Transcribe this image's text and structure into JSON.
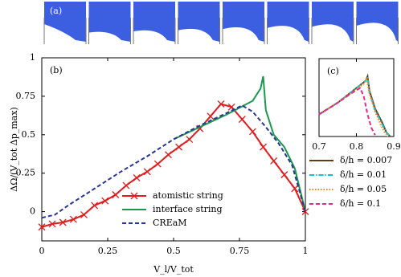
{
  "panel_a": {
    "label": "(a)"
  },
  "chart_data": [
    {
      "type": "line",
      "panel_label": "(b)",
      "x_label": "V_l/V_tot",
      "y_label": "ΔΩ/(V_tot Δp_max)",
      "xlim": [
        0,
        1
      ],
      "ylim": [
        -0.19,
        1
      ],
      "xticks": [
        0,
        0.25,
        0.5,
        0.75,
        1
      ],
      "yticks": [
        0,
        0.25,
        0.5,
        0.75,
        1
      ],
      "legend": "lower right",
      "series": [
        {
          "name": "atomistic string",
          "color": "#e41a1c",
          "dash": "solid",
          "marker": "x",
          "x": [
            0,
            0.04,
            0.08,
            0.12,
            0.16,
            0.2,
            0.24,
            0.28,
            0.32,
            0.36,
            0.4,
            0.44,
            0.48,
            0.52,
            0.56,
            0.6,
            0.64,
            0.68,
            0.72,
            0.76,
            0.8,
            0.84,
            0.88,
            0.92,
            0.96,
            1
          ],
          "values": [
            -0.1,
            -0.08,
            -0.07,
            -0.05,
            -0.02,
            0.04,
            0.07,
            0.11,
            0.17,
            0.22,
            0.26,
            0.31,
            0.37,
            0.42,
            0.47,
            0.54,
            0.62,
            0.7,
            0.68,
            0.6,
            0.52,
            0.42,
            0.33,
            0.24,
            0.15,
            0
          ]
        },
        {
          "name": "interface string",
          "color": "#1a9850",
          "dash": "solid",
          "marker": "none",
          "x": [
            0.5,
            0.6,
            0.7,
            0.8,
            0.83,
            0.84,
            0.85,
            0.88,
            0.92,
            0.96,
            1
          ],
          "values": [
            0.47,
            0.55,
            0.63,
            0.72,
            0.8,
            0.88,
            0.66,
            0.5,
            0.42,
            0.28,
            0
          ]
        },
        {
          "name": "CREaM",
          "color": "#283593",
          "dash": "dashed",
          "marker": "none",
          "x": [
            0,
            0.05,
            0.1,
            0.2,
            0.3,
            0.4,
            0.5,
            0.6,
            0.7,
            0.76,
            0.8,
            0.85,
            0.9,
            0.95,
            1
          ],
          "values": [
            -0.04,
            -0.02,
            0.04,
            0.15,
            0.26,
            0.36,
            0.47,
            0.56,
            0.64,
            0.69,
            0.65,
            0.55,
            0.44,
            0.3,
            0
          ]
        }
      ]
    },
    {
      "type": "line",
      "panel_label": "(c)",
      "xlim": [
        0.7,
        0.9
      ],
      "ylim": [
        0.47,
        1
      ],
      "xticks": [
        0.7,
        0.8,
        0.9
      ],
      "legend": "below",
      "series": [
        {
          "name": "δ/h = 0.007",
          "color": "#5d3a1a",
          "dash": "solid",
          "marker": "none",
          "x": [
            0.7,
            0.75,
            0.8,
            0.825,
            0.83,
            0.835,
            0.85,
            0.87,
            0.88,
            0.89
          ],
          "values": [
            0.62,
            0.7,
            0.8,
            0.85,
            0.88,
            0.78,
            0.66,
            0.56,
            0.5,
            0.47
          ]
        },
        {
          "name": "δ/h = 0.01",
          "color": "#17becf",
          "dash": "dashdot",
          "marker": "none",
          "x": [
            0.7,
            0.75,
            0.8,
            0.825,
            0.83,
            0.835,
            0.85,
            0.87,
            0.88,
            0.89
          ],
          "values": [
            0.62,
            0.7,
            0.8,
            0.85,
            0.875,
            0.77,
            0.65,
            0.55,
            0.5,
            0.47
          ]
        },
        {
          "name": "δ/h = 0.05",
          "color": "#ff7f0e",
          "dash": "dotted",
          "marker": "none",
          "x": [
            0.7,
            0.75,
            0.8,
            0.82,
            0.828,
            0.835,
            0.85,
            0.865,
            0.875,
            0.885
          ],
          "values": [
            0.62,
            0.7,
            0.79,
            0.83,
            0.86,
            0.76,
            0.64,
            0.55,
            0.5,
            0.47
          ]
        },
        {
          "name": "δ/h = 0.1",
          "color": "#e7298a",
          "dash": "dashed",
          "marker": "none",
          "x": [
            0.7,
            0.75,
            0.79,
            0.81,
            0.82,
            0.83,
            0.84,
            0.85
          ],
          "values": [
            0.62,
            0.7,
            0.77,
            0.8,
            0.74,
            0.62,
            0.53,
            0.48
          ]
        }
      ]
    }
  ]
}
